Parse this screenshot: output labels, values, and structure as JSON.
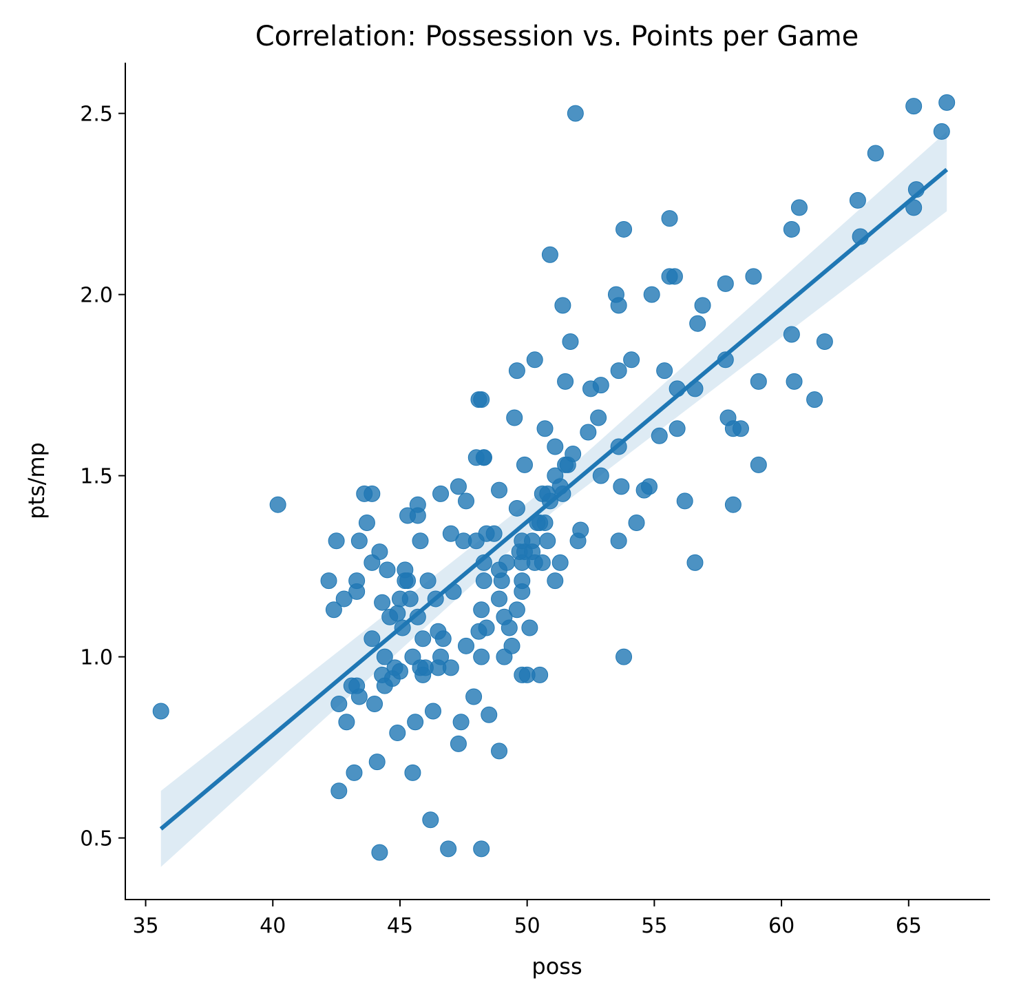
{
  "colors": {
    "points": "#1f77b4",
    "line": "#1f77b4",
    "band": "#1f77b4"
  },
  "chart_data": {
    "type": "scatter",
    "title": "Correlation: Possession vs. Points per Game",
    "xlabel": "poss",
    "ylabel": "pts/mp",
    "xlim": [
      34.2,
      68.2
    ],
    "ylim": [
      0.33,
      2.64
    ],
    "xticks": [
      35,
      40,
      45,
      50,
      55,
      60,
      65
    ],
    "yticks": [
      0.5,
      1.0,
      1.5,
      2.0,
      2.5
    ],
    "xtick_labels": [
      "35",
      "40",
      "45",
      "50",
      "55",
      "60",
      "65"
    ],
    "ytick_labels": [
      "0.5",
      "1.0",
      "1.5",
      "2.0",
      "2.5"
    ],
    "grid": false,
    "regression": {
      "x": [
        35.6,
        66.5
      ],
      "y": [
        0.525,
        2.345
      ]
    },
    "ci_band": {
      "x": [
        35.6,
        51.0,
        66.5
      ],
      "upper": [
        0.63,
        1.48,
        2.45
      ],
      "lower": [
        0.42,
        1.4,
        2.23
      ]
    },
    "points": [
      [
        35.6,
        0.85
      ],
      [
        40.2,
        1.42
      ],
      [
        42.2,
        1.21
      ],
      [
        42.4,
        1.13
      ],
      [
        42.5,
        1.32
      ],
      [
        42.6,
        0.87
      ],
      [
        42.6,
        0.63
      ],
      [
        42.8,
        1.16
      ],
      [
        42.9,
        0.82
      ],
      [
        43.1,
        0.92
      ],
      [
        43.2,
        0.68
      ],
      [
        43.3,
        0.92
      ],
      [
        43.3,
        1.18
      ],
      [
        43.3,
        1.21
      ],
      [
        43.4,
        1.32
      ],
      [
        43.4,
        0.89
      ],
      [
        43.6,
        1.45
      ],
      [
        43.7,
        1.37
      ],
      [
        43.9,
        1.26
      ],
      [
        43.9,
        1.05
      ],
      [
        43.9,
        1.45
      ],
      [
        44.0,
        0.87
      ],
      [
        44.1,
        0.71
      ],
      [
        44.2,
        1.29
      ],
      [
        44.2,
        0.46
      ],
      [
        44.3,
        1.15
      ],
      [
        44.3,
        0.95
      ],
      [
        44.4,
        0.92
      ],
      [
        44.4,
        1.0
      ],
      [
        44.5,
        1.24
      ],
      [
        44.6,
        1.11
      ],
      [
        44.7,
        0.94
      ],
      [
        44.8,
        0.97
      ],
      [
        44.9,
        0.79
      ],
      [
        44.9,
        1.12
      ],
      [
        45.0,
        0.96
      ],
      [
        45.0,
        1.16
      ],
      [
        45.1,
        1.08
      ],
      [
        45.2,
        1.24
      ],
      [
        45.2,
        1.21
      ],
      [
        45.3,
        1.39
      ],
      [
        45.3,
        1.21
      ],
      [
        45.4,
        1.16
      ],
      [
        45.5,
        1.0
      ],
      [
        45.5,
        0.68
      ],
      [
        45.6,
        0.82
      ],
      [
        45.7,
        1.42
      ],
      [
        45.7,
        1.39
      ],
      [
        45.7,
        1.11
      ],
      [
        45.8,
        0.97
      ],
      [
        45.8,
        1.32
      ],
      [
        45.9,
        0.95
      ],
      [
        45.9,
        1.05
      ],
      [
        46.0,
        0.97
      ],
      [
        46.1,
        1.21
      ],
      [
        46.2,
        0.55
      ],
      [
        46.3,
        0.85
      ],
      [
        46.4,
        1.16
      ],
      [
        46.5,
        0.97
      ],
      [
        46.5,
        1.07
      ],
      [
        46.6,
        1.0
      ],
      [
        46.6,
        1.45
      ],
      [
        46.7,
        1.05
      ],
      [
        46.9,
        0.47
      ],
      [
        47.0,
        1.34
      ],
      [
        47.0,
        0.97
      ],
      [
        47.1,
        1.18
      ],
      [
        47.3,
        1.47
      ],
      [
        47.3,
        0.76
      ],
      [
        47.4,
        0.82
      ],
      [
        47.5,
        1.32
      ],
      [
        47.6,
        1.43
      ],
      [
        47.6,
        1.03
      ],
      [
        47.9,
        0.89
      ],
      [
        48.0,
        1.32
      ],
      [
        48.0,
        1.55
      ],
      [
        48.1,
        1.71
      ],
      [
        48.1,
        1.07
      ],
      [
        48.2,
        1.71
      ],
      [
        48.2,
        1.13
      ],
      [
        48.2,
        1.0
      ],
      [
        48.2,
        0.47
      ],
      [
        48.3,
        1.21
      ],
      [
        48.3,
        1.55
      ],
      [
        48.3,
        1.55
      ],
      [
        48.3,
        1.26
      ],
      [
        48.4,
        1.34
      ],
      [
        48.4,
        1.08
      ],
      [
        48.5,
        0.84
      ],
      [
        48.7,
        1.34
      ],
      [
        48.9,
        1.46
      ],
      [
        48.9,
        1.24
      ],
      [
        48.9,
        1.16
      ],
      [
        48.9,
        0.74
      ],
      [
        49.0,
        1.21
      ],
      [
        49.1,
        1.11
      ],
      [
        49.1,
        1.0
      ],
      [
        49.2,
        1.26
      ],
      [
        49.3,
        1.08
      ],
      [
        49.4,
        1.03
      ],
      [
        49.5,
        1.66
      ],
      [
        49.6,
        1.79
      ],
      [
        49.6,
        1.41
      ],
      [
        49.6,
        1.13
      ],
      [
        49.7,
        1.29
      ],
      [
        49.8,
        1.32
      ],
      [
        49.8,
        1.26
      ],
      [
        49.8,
        1.21
      ],
      [
        49.8,
        1.18
      ],
      [
        49.8,
        0.95
      ],
      [
        49.9,
        1.53
      ],
      [
        49.9,
        1.29
      ],
      [
        50.0,
        0.95
      ],
      [
        50.1,
        1.08
      ],
      [
        50.2,
        1.32
      ],
      [
        50.2,
        1.29
      ],
      [
        50.3,
        1.82
      ],
      [
        50.3,
        1.26
      ],
      [
        50.4,
        1.37
      ],
      [
        50.5,
        1.37
      ],
      [
        50.5,
        0.95
      ],
      [
        50.6,
        1.45
      ],
      [
        50.6,
        1.26
      ],
      [
        50.7,
        1.63
      ],
      [
        50.7,
        1.37
      ],
      [
        50.8,
        1.45
      ],
      [
        50.8,
        1.32
      ],
      [
        50.9,
        2.11
      ],
      [
        50.9,
        1.43
      ],
      [
        51.1,
        1.58
      ],
      [
        51.1,
        1.5
      ],
      [
        51.1,
        1.21
      ],
      [
        51.3,
        1.47
      ],
      [
        51.3,
        1.26
      ],
      [
        51.4,
        1.97
      ],
      [
        51.4,
        1.45
      ],
      [
        51.5,
        1.76
      ],
      [
        51.5,
        1.53
      ],
      [
        51.6,
        1.53
      ],
      [
        51.7,
        1.87
      ],
      [
        51.8,
        1.56
      ],
      [
        51.9,
        2.5
      ],
      [
        52.0,
        1.32
      ],
      [
        52.1,
        1.35
      ],
      [
        52.4,
        1.62
      ],
      [
        52.5,
        1.74
      ],
      [
        52.8,
        1.66
      ],
      [
        52.9,
        1.75
      ],
      [
        52.9,
        1.5
      ],
      [
        53.5,
        2.0
      ],
      [
        53.6,
        1.97
      ],
      [
        53.6,
        1.79
      ],
      [
        53.6,
        1.58
      ],
      [
        53.6,
        1.32
      ],
      [
        53.7,
        1.47
      ],
      [
        53.8,
        2.18
      ],
      [
        53.8,
        1.0
      ],
      [
        54.1,
        1.82
      ],
      [
        54.3,
        1.37
      ],
      [
        54.6,
        1.46
      ],
      [
        54.8,
        1.47
      ],
      [
        54.9,
        2.0
      ],
      [
        55.2,
        1.61
      ],
      [
        55.4,
        1.79
      ],
      [
        55.6,
        2.21
      ],
      [
        55.6,
        2.05
      ],
      [
        55.8,
        2.05
      ],
      [
        55.9,
        1.74
      ],
      [
        55.9,
        1.63
      ],
      [
        56.2,
        1.43
      ],
      [
        56.6,
        1.74
      ],
      [
        56.6,
        1.26
      ],
      [
        56.7,
        1.92
      ],
      [
        56.9,
        1.97
      ],
      [
        57.8,
        2.03
      ],
      [
        57.8,
        1.82
      ],
      [
        57.9,
        1.66
      ],
      [
        58.1,
        1.63
      ],
      [
        58.1,
        1.42
      ],
      [
        58.4,
        1.63
      ],
      [
        58.9,
        2.05
      ],
      [
        59.1,
        1.76
      ],
      [
        59.1,
        1.53
      ],
      [
        60.4,
        2.18
      ],
      [
        60.4,
        1.89
      ],
      [
        60.5,
        1.76
      ],
      [
        60.7,
        2.24
      ],
      [
        61.3,
        1.71
      ],
      [
        61.7,
        1.87
      ],
      [
        63.0,
        2.26
      ],
      [
        63.1,
        2.16
      ],
      [
        63.7,
        2.39
      ],
      [
        65.2,
        2.52
      ],
      [
        65.2,
        2.24
      ],
      [
        65.3,
        2.29
      ],
      [
        66.3,
        2.45
      ],
      [
        66.5,
        2.53
      ]
    ]
  }
}
